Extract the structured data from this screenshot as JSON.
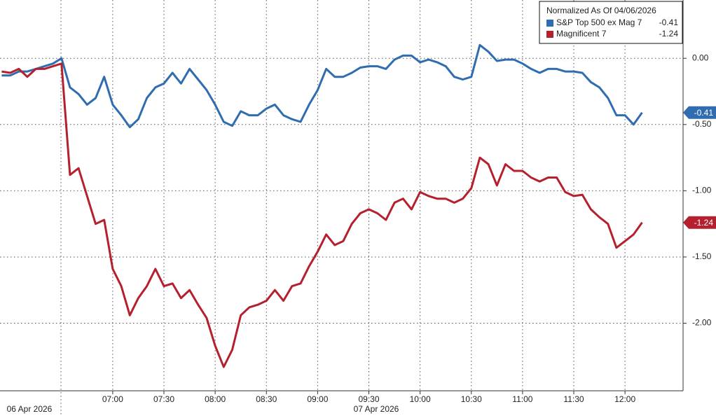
{
  "chart_data": {
    "type": "line",
    "legend_title": "Normalized As Of 04/06/2026",
    "legend_position": "top-right",
    "date_labels": [
      "06 Apr 2026",
      "07 Apr 2026"
    ],
    "x": [
      "05:55",
      "06:00",
      "06:05",
      "06:10",
      "06:15",
      "06:20",
      "06:25",
      "06:30",
      "06:35",
      "06:40",
      "06:45",
      "06:50",
      "06:55",
      "07:00",
      "07:05",
      "07:10",
      "07:15",
      "07:20",
      "07:25",
      "07:30",
      "07:35",
      "07:40",
      "07:45",
      "07:50",
      "07:55",
      "08:00",
      "08:05",
      "08:10",
      "08:15",
      "08:20",
      "08:25",
      "08:30",
      "08:35",
      "08:40",
      "08:45",
      "08:50",
      "08:55",
      "09:00",
      "09:05",
      "09:10",
      "09:15",
      "09:20",
      "09:25",
      "09:30",
      "09:35",
      "09:40",
      "09:45",
      "09:50",
      "09:55",
      "10:00",
      "10:05",
      "10:10",
      "10:15",
      "10:20",
      "10:25",
      "10:30",
      "10:35",
      "10:40",
      "10:45",
      "10:50",
      "10:55",
      "11:00",
      "11:05",
      "11:10",
      "11:15",
      "11:20",
      "11:25",
      "11:30",
      "11:35",
      "11:40",
      "11:45",
      "11:50",
      "11:55",
      "12:00",
      "12:05",
      "12:10"
    ],
    "xlim": [
      "05:54",
      "12:34"
    ],
    "xticks": [
      "07:00",
      "07:30",
      "08:00",
      "08:30",
      "09:00",
      "09:30",
      "10:00",
      "10:30",
      "11:00",
      "11:30",
      "12:00"
    ],
    "ylim": [
      -2.51,
      0.44
    ],
    "yticks": [
      {
        "value": 0,
        "label": "0.00"
      },
      {
        "value": -0.5,
        "label": "-0.50"
      },
      {
        "value": -1,
        "label": "-1.00"
      },
      {
        "value": -1.5,
        "label": "-1.50"
      },
      {
        "value": -2,
        "label": "-2.00"
      }
    ],
    "grid": true,
    "series": [
      {
        "name": "S&P Top 500 ex Mag 7",
        "color": "#2f6db0",
        "values": [
          -0.13,
          -0.13,
          -0.1,
          -0.1,
          -0.08,
          -0.06,
          -0.04,
          0.0,
          -0.22,
          -0.27,
          -0.35,
          -0.3,
          -0.14,
          -0.35,
          -0.43,
          -0.52,
          -0.46,
          -0.3,
          -0.22,
          -0.19,
          -0.11,
          -0.19,
          -0.08,
          -0.16,
          -0.24,
          -0.35,
          -0.48,
          -0.51,
          -0.4,
          -0.43,
          -0.43,
          -0.38,
          -0.35,
          -0.43,
          -0.46,
          -0.48,
          -0.35,
          -0.24,
          -0.08,
          -0.14,
          -0.14,
          -0.11,
          -0.07,
          -0.06,
          -0.06,
          -0.08,
          -0.01,
          0.02,
          0.02,
          -0.03,
          -0.01,
          -0.03,
          -0.06,
          -0.14,
          -0.16,
          -0.14,
          0.1,
          0.05,
          -0.02,
          -0.01,
          -0.01,
          -0.04,
          -0.08,
          -0.11,
          -0.08,
          -0.08,
          -0.1,
          -0.1,
          -0.11,
          -0.18,
          -0.22,
          -0.3,
          -0.43,
          -0.43,
          -0.5,
          -0.41
        ]
      },
      {
        "name": "Magnificent 7",
        "color": "#b5202e",
        "values": [
          -0.1,
          -0.11,
          -0.08,
          -0.14,
          -0.08,
          -0.08,
          -0.06,
          -0.04,
          -0.88,
          -0.83,
          -1.04,
          -1.25,
          -1.22,
          -1.59,
          -1.72,
          -1.94,
          -1.81,
          -1.72,
          -1.59,
          -1.72,
          -1.7,
          -1.81,
          -1.75,
          -1.86,
          -1.96,
          -2.17,
          -2.33,
          -2.2,
          -1.94,
          -1.88,
          -1.86,
          -1.83,
          -1.75,
          -1.83,
          -1.72,
          -1.7,
          -1.57,
          -1.46,
          -1.33,
          -1.41,
          -1.38,
          -1.25,
          -1.17,
          -1.14,
          -1.17,
          -1.22,
          -1.09,
          -1.06,
          -1.14,
          -1.01,
          -1.04,
          -1.06,
          -1.06,
          -1.09,
          -1.06,
          -0.98,
          -0.75,
          -0.8,
          -0.96,
          -0.8,
          -0.85,
          -0.85,
          -0.9,
          -0.93,
          -0.9,
          -0.9,
          -1.01,
          -1.04,
          -1.03,
          -1.14,
          -1.2,
          -1.25,
          -1.43,
          -1.38,
          -1.33,
          -1.24
        ]
      }
    ]
  }
}
